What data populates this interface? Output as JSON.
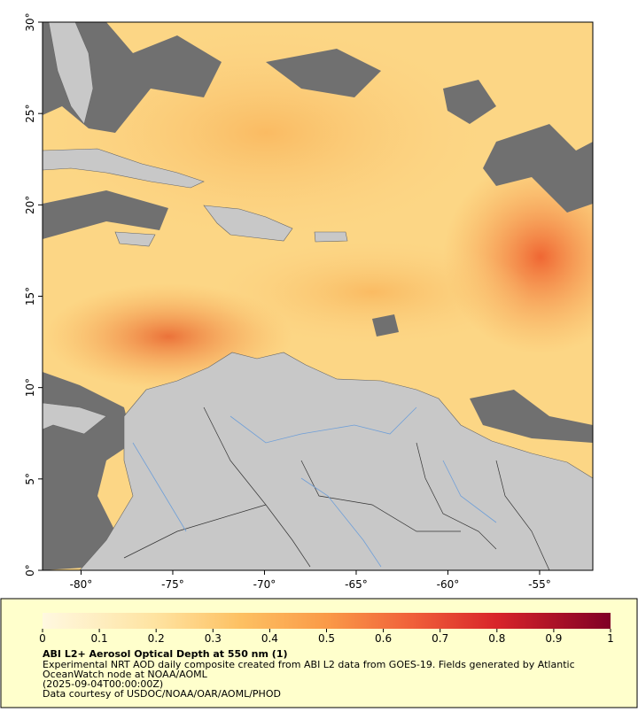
{
  "map": {
    "xlim": [
      -82.1,
      -52.1
    ],
    "ylim": [
      0,
      30
    ],
    "xticks": [
      {
        "value": -80,
        "label": "-80°"
      },
      {
        "value": -75,
        "label": "-75°"
      },
      {
        "value": -70,
        "label": "-70°"
      },
      {
        "value": -65,
        "label": "-65°"
      },
      {
        "value": -60,
        "label": "-60°"
      },
      {
        "value": -55,
        "label": "-55°"
      }
    ],
    "yticks": [
      {
        "value": 0,
        "label": "0°"
      },
      {
        "value": 5,
        "label": "5°"
      },
      {
        "value": 10,
        "label": "10°"
      },
      {
        "value": 15,
        "label": "15°"
      },
      {
        "value": 20,
        "label": "20°"
      },
      {
        "value": 25,
        "label": "25°"
      },
      {
        "value": 30,
        "label": "30°"
      }
    ]
  },
  "colorbar": {
    "lim": [
      0,
      1
    ],
    "ticks": [
      0,
      0.1,
      0.2,
      0.3,
      0.4,
      0.5,
      0.6,
      0.7,
      0.8,
      0.9,
      1
    ]
  },
  "caption": {
    "title": "ABI L2+ Aerosol Optical Depth at 550 nm (1)",
    "lines": [
      "Experimental NRT AOD daily composite created from ABI L2 data from GOES-19. Fields generated by Atlantic",
      "OceanWatch node at NOAA/AOML",
      "(2025-09-04T00:00:00Z)",
      "Data courtesy of USDOC/NOAA/OAR/AOML/PHOD"
    ]
  }
}
